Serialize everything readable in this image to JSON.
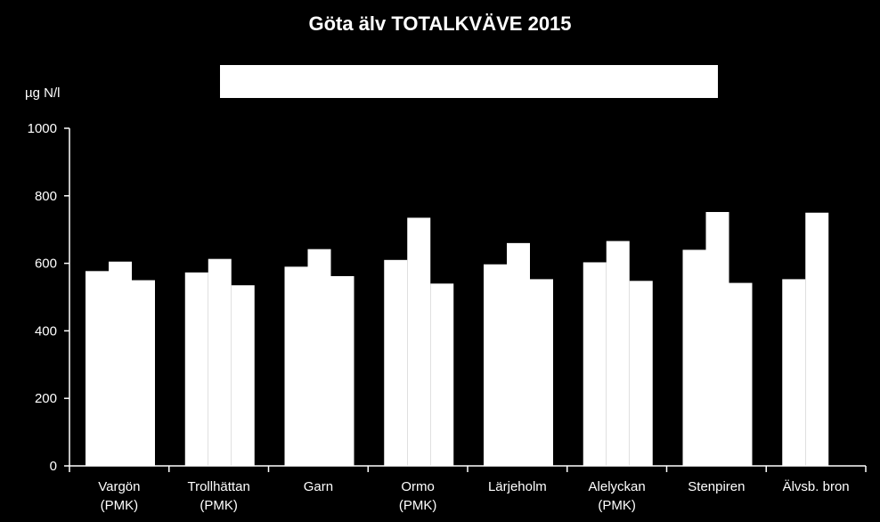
{
  "chart_data": {
    "type": "bar",
    "title": "Göta älv TOTALKVÄVE 2015",
    "ylabel": "µg N/l",
    "xlabel": "",
    "ylim": [
      0,
      1000
    ],
    "yticks": [
      0,
      200,
      400,
      600,
      800,
      1000
    ],
    "grid": false,
    "legend": "top",
    "categories": [
      [
        "Vargön",
        "(PMK)"
      ],
      [
        "Trollhättan",
        "(PMK)"
      ],
      [
        "Garn"
      ],
      [
        "Ormo",
        "(PMK)"
      ],
      [
        "Lärjeholm"
      ],
      [
        "Alelyckan",
        "(PMK)"
      ],
      [
        "Stenpiren"
      ],
      [
        "Älvsb. bron"
      ]
    ],
    "series": [
      {
        "values": [
          577,
          573,
          590,
          610,
          597,
          603,
          640,
          553
        ]
      },
      {
        "values": [
          605,
          613,
          642,
          735,
          660,
          666,
          752,
          750
        ]
      },
      {
        "values": [
          550,
          535,
          562,
          540,
          553,
          548,
          542,
          null
        ]
      }
    ],
    "colors": {
      "background": "#000000",
      "bars": "#ffffff",
      "axis": "#ffffff",
      "text": "#ffffff"
    }
  }
}
